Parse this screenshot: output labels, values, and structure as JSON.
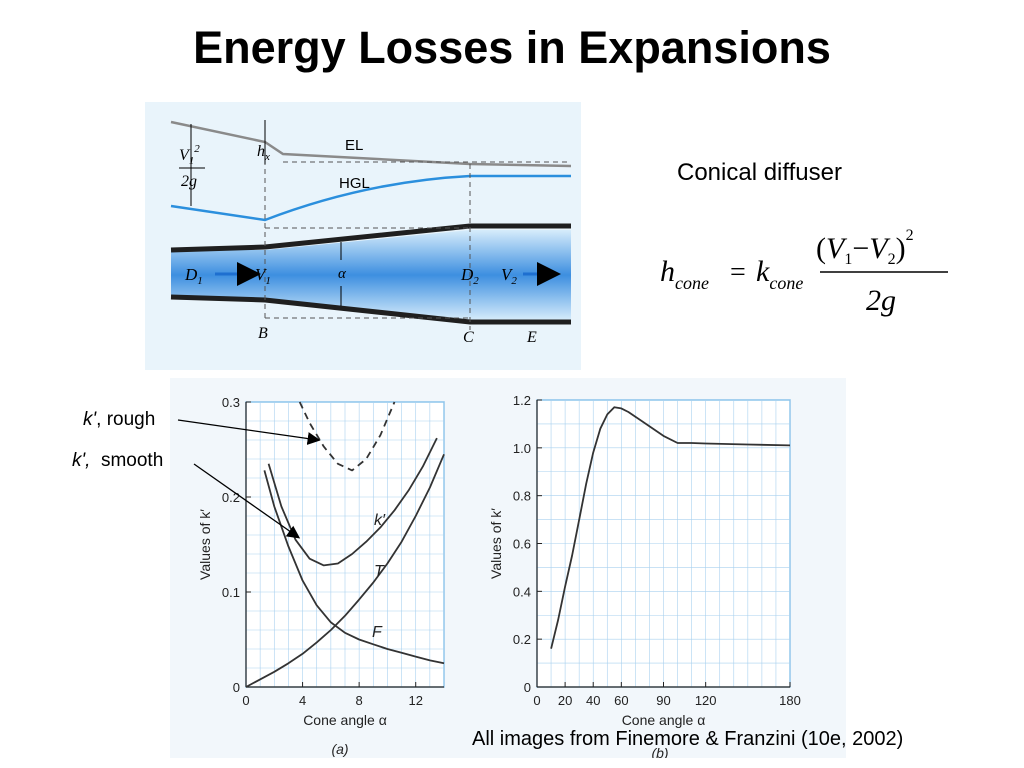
{
  "slide": {
    "title": "Energy Losses in Expansions",
    "caption": "All images from Finemore & Franzini (10e, 2002)"
  },
  "diagram": {
    "el_label": "EL",
    "hgl_label": "HGL",
    "hx_label": "h",
    "hx_sub": "x",
    "v1_num": "V",
    "v1_sub": "1",
    "v1_sup": "2",
    "v1_den": "2g",
    "d1_label": "D",
    "d1_sub": "1",
    "v1_label": "V",
    "v1_label_sub": "1",
    "alpha_label": "α",
    "d2_label": "D",
    "d2_sub": "2",
    "v2_label": "V",
    "v2_label_sub": "2",
    "point_b": "B",
    "point_c": "C",
    "point_e": "E",
    "pipe_color": "#1f1f1f",
    "water_color": "#3d8fe0",
    "hgl_color": "#2b8fdd",
    "el_color": "#8a8a8a"
  },
  "formula": {
    "heading": "Conical diffuser",
    "lhs": "h",
    "lhs_sub": "cone",
    "eq": "=",
    "k": "k",
    "k_sub": "cone",
    "num_open": "(",
    "num_v1": "V",
    "num_v1_sub": "1",
    "minus": "−",
    "num_v2": "V",
    "num_v2_sub": "2",
    "num_close": ")",
    "num_sup": "2",
    "den": "2g"
  },
  "annotations": {
    "rough_k": "k'",
    "rough_rest": ", rough",
    "smooth_k": "k',",
    "smooth_rest": "  smooth"
  },
  "chart_data": [
    {
      "type": "line",
      "panel_label": "(a)",
      "xlabel": "Cone angle α",
      "ylabel": "Values of k′",
      "xlim": [
        0,
        14
      ],
      "ylim": [
        0,
        0.3
      ],
      "xticks": [
        "0",
        "4",
        "8",
        "12"
      ],
      "xtick_values": [
        0,
        4,
        8,
        12
      ],
      "yticks": [
        "0",
        "0.1",
        "0.2",
        "0.3"
      ],
      "ytick_values": [
        0,
        0.1,
        0.2,
        0.3
      ],
      "grid": true,
      "series": [
        {
          "name": "k′",
          "style": "solid",
          "x": [
            1.6,
            2.5,
            3.5,
            4.5,
            5.5,
            6.5,
            7.5,
            8.5,
            9.5,
            10.5,
            11.5,
            12.5,
            13.5
          ],
          "y": [
            0.235,
            0.19,
            0.155,
            0.135,
            0.128,
            0.13,
            0.14,
            0.153,
            0.168,
            0.186,
            0.207,
            0.232,
            0.262
          ]
        },
        {
          "name": "",
          "style": "dashed",
          "x": [
            3.8,
            4.5,
            5.5,
            6.5,
            7.5,
            8.5,
            9.5,
            10.5
          ],
          "y": [
            0.3,
            0.278,
            0.253,
            0.235,
            0.228,
            0.24,
            0.265,
            0.3
          ]
        },
        {
          "name": "T",
          "style": "solid",
          "x": [
            0,
            1,
            2,
            3,
            4,
            5,
            6,
            7,
            8,
            9,
            10,
            11,
            12,
            13,
            14
          ],
          "y": [
            0,
            0.008,
            0.016,
            0.025,
            0.035,
            0.047,
            0.06,
            0.075,
            0.092,
            0.11,
            0.13,
            0.153,
            0.18,
            0.21,
            0.245
          ]
        },
        {
          "name": "F",
          "style": "solid",
          "x": [
            1.3,
            2,
            3,
            4,
            5,
            6,
            7,
            8,
            9,
            10,
            11,
            12,
            13,
            14
          ],
          "y": [
            0.228,
            0.19,
            0.148,
            0.112,
            0.086,
            0.068,
            0.057,
            0.05,
            0.045,
            0.04,
            0.036,
            0.032,
            0.028,
            0.025
          ]
        }
      ],
      "series_labels": [
        "k′",
        "T",
        "F"
      ]
    },
    {
      "type": "line",
      "panel_label": "(b)",
      "xlabel": "Cone angle α",
      "ylabel": "Values of k′",
      "xlim": [
        0,
        180
      ],
      "ylim": [
        0,
        1.2
      ],
      "xticks": [
        "0",
        "20",
        "40",
        "60",
        "90",
        "120",
        "180"
      ],
      "xtick_values": [
        0,
        20,
        40,
        60,
        90,
        120,
        180
      ],
      "yticks": [
        "0",
        "0.2",
        "0.4",
        "0.6",
        "0.8",
        "1.0",
        "1.2"
      ],
      "ytick_values": [
        0,
        0.2,
        0.4,
        0.6,
        0.8,
        1.0,
        1.2
      ],
      "grid": true,
      "series": [
        {
          "name": "",
          "style": "solid",
          "x": [
            10,
            15,
            20,
            25,
            30,
            35,
            40,
            45,
            50,
            55,
            60,
            65,
            70,
            80,
            90,
            100,
            110,
            120,
            150,
            180
          ],
          "y": [
            0.16,
            0.28,
            0.42,
            0.55,
            0.7,
            0.85,
            0.98,
            1.08,
            1.14,
            1.17,
            1.165,
            1.15,
            1.13,
            1.09,
            1.05,
            1.02,
            1.02,
            1.018,
            1.014,
            1.01
          ]
        }
      ]
    }
  ]
}
